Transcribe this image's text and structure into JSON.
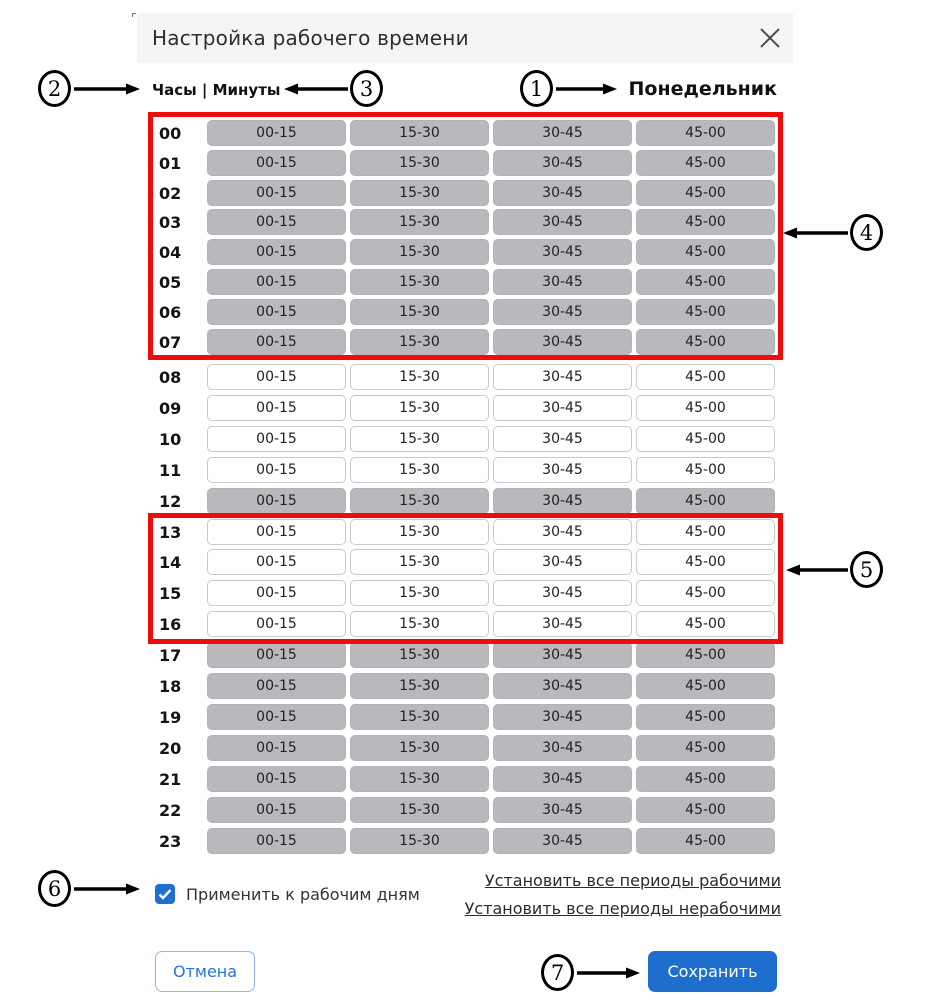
{
  "dialog": {
    "title": "Настройка рабочего времени",
    "day": "Понедельник",
    "columns_header": "Часы | Минуты"
  },
  "table": {
    "periods": [
      "00-15",
      "15-30",
      "30-45",
      "45-00"
    ],
    "rows": [
      {
        "hour": "00",
        "working": false
      },
      {
        "hour": "01",
        "working": false
      },
      {
        "hour": "02",
        "working": false
      },
      {
        "hour": "03",
        "working": false
      },
      {
        "hour": "04",
        "working": false
      },
      {
        "hour": "05",
        "working": false
      },
      {
        "hour": "06",
        "working": false
      },
      {
        "hour": "07",
        "working": false
      },
      {
        "hour": "08",
        "working": true
      },
      {
        "hour": "09",
        "working": true
      },
      {
        "hour": "10",
        "working": true
      },
      {
        "hour": "11",
        "working": true
      },
      {
        "hour": "12",
        "working": false
      },
      {
        "hour": "13",
        "working": true
      },
      {
        "hour": "14",
        "working": true
      },
      {
        "hour": "15",
        "working": true
      },
      {
        "hour": "16",
        "working": true
      },
      {
        "hour": "17",
        "working": false
      },
      {
        "hour": "18",
        "working": false
      },
      {
        "hour": "19",
        "working": false
      },
      {
        "hour": "20",
        "working": false
      },
      {
        "hour": "21",
        "working": false
      },
      {
        "hour": "22",
        "working": false
      },
      {
        "hour": "23",
        "working": false
      }
    ]
  },
  "footer": {
    "apply_checkbox": {
      "checked": true,
      "label": "Применить к рабочим дням"
    },
    "links": [
      "Установить все периоды рабочими",
      "Установить все периоды нерабочими"
    ],
    "cancel_label": "Отмена",
    "save_label": "Сохранить"
  },
  "annotations": {
    "items": [
      {
        "label": "1"
      },
      {
        "label": "2"
      },
      {
        "label": "3"
      },
      {
        "label": "4"
      },
      {
        "label": "5"
      },
      {
        "label": "6"
      },
      {
        "label": "7"
      }
    ],
    "highlight_color": "#ee0c0c"
  },
  "colors": {
    "accent_blue": "#1e6fd0",
    "annotation_red": "#ee0c0c",
    "inactive_cell": "#b9b9bd",
    "header_bar": "#f5f5f6"
  }
}
